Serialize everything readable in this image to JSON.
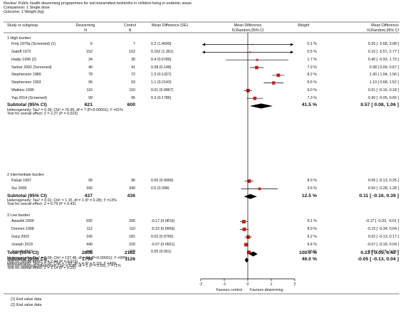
{
  "header": {
    "review": "Review:  Public health deworming programmes for soil-transmitted helminths in children living in endemic areas",
    "comparison": "Comparison:  1 Single dose",
    "outcome": "Outcome:  1 Weight (kg)"
  },
  "columns": {
    "study": "Study or subgroup",
    "deworming": "Deworming",
    "deworming_n": "N",
    "control": "Control",
    "control_n": "N",
    "md_se": "Mean Difference (SE)",
    "md_top": "Mean Difference",
    "md_method": "IV,Random,95% CI",
    "weight": "Weight",
    "md2_top": "Mean Difference",
    "md2_method": "IV,Random,95% CI"
  },
  "chart_data": {
    "type": "forest",
    "xlim": [
      -2,
      2
    ],
    "xticks": [
      "-2",
      "-1",
      "0",
      "1",
      "2"
    ],
    "xlabel_left": "Favours control",
    "xlabel_right": "Favours deworming",
    "groups": [
      {
        "title": "1 High burden",
        "studies": [
          {
            "name": "Freij 1979a (Screened) (1)",
            "n1": "6",
            "n2": "7",
            "md_se": "0.2 (1.4699)",
            "md": 0.2,
            "lo": -2.68,
            "hi": 3.08,
            "weight": "0.1 %",
            "w": 0.1,
            "ci": "0.20 [ -2.68, 3.08 ]"
          },
          {
            "name": "Gateff 1972",
            "n1": "152",
            "n2": "152",
            "md_se": "0.102 (1.361)",
            "md": 0.1,
            "lo": -2.57,
            "hi": 2.77,
            "weight": "0.5 %",
            "w": 0.5,
            "ci": "0.10 [ -2.57, 2.77 ]"
          },
          {
            "name": "Hadju 1996 (2)",
            "n1": "34",
            "n2": "30",
            "md_se": "0.4 (0.6786)",
            "md": 0.4,
            "lo": -0.93,
            "hi": 1.73,
            "weight": "1.7 %",
            "w": 1.7,
            "ci": "0.40 [ -0.93, 1.73 ]"
          },
          {
            "name": "Sarkar 2002 (Screened)",
            "n1": "40",
            "n2": "41",
            "md_se": "0.38 (0.148)",
            "md": 0.38,
            "lo": 0.09,
            "hi": 0.67,
            "weight": "7.9 %",
            "w": 7.9,
            "ci": "0.38 [ 0.09, 0.67 ]"
          },
          {
            "name": "Stephenson 1989",
            "n1": "78",
            "n2": "72",
            "md_se": "1.3 (0.1327)",
            "md": 1.3,
            "lo": 1.04,
            "hi": 1.56,
            "weight": "8.2 %",
            "w": 8.2,
            "ci": "1.30 [ 1.04, 1.56 ]"
          },
          {
            "name": "Stephenson 1993",
            "n1": "96",
            "n2": "93",
            "md_se": "1.1 (0.2143)",
            "md": 1.1,
            "lo": 0.68,
            "hi": 1.52,
            "weight": "6.6 %",
            "w": 6.6,
            "ci": "1.10 [ 0.68, 1.52 ]"
          },
          {
            "name": "Watkins 1996",
            "n1": "116",
            "n2": "110",
            "md_se": "0.01 (0.0867)",
            "md": 0.01,
            "lo": -0.16,
            "hi": 0.18,
            "weight": "9.0 %",
            "w": 9.0,
            "ci": "0.01 [ -0.16, 0.18 ]"
          },
          {
            "name": "Yap 2014 (Screened)",
            "n1": "99",
            "n2": "95",
            "md_se": "0.3 (0.1786)",
            "md": 0.3,
            "lo": -0.05,
            "hi": 0.65,
            "weight": "7.3 %",
            "w": 7.3,
            "ci": "0.30 [ -0.05, 0.65 ]"
          }
        ],
        "subtotal": {
          "label": "Subtotal (95% CI)",
          "n1": "621",
          "n2": "600",
          "weight": "41.5 %",
          "ci": "0.57 [ 0.08, 1.06 ]",
          "md": 0.57,
          "lo": 0.08,
          "hi": 1.06
        },
        "heterogeneity": "Heterogeneity: Tau² = 0.34; Chi² = 76.95, df = 7 (P<0.00001); I² =91%",
        "overall": "Test for overall effect: Z = 2.27 (P = 0.023)"
      },
      {
        "title": "2 Intermediate burden",
        "studies": [
          {
            "name": "Palupi 1997",
            "n1": "95",
            "n2": "96",
            "md_se": "0.06 (0.0969)",
            "md": 0.06,
            "lo": -0.13,
            "hi": 0.25,
            "weight": "8.9 %",
            "w": 8.9,
            "ci": "0.06 [ -0.13, 0.25 ]"
          },
          {
            "name": "Sur 2005",
            "n1": "342",
            "n2": "340",
            "md_se": "0.5 (0.398)",
            "md": 0.5,
            "lo": -0.28,
            "hi": 1.28,
            "weight": "3.6 %",
            "w": 3.6,
            "ci": "0.50 [ -0.28, 1.28 ]"
          }
        ],
        "subtotal": {
          "label": "Subtotal (95% CI)",
          "n1": "437",
          "n2": "436",
          "weight": "12.5 %",
          "ci": "0.11 [ -0.16, 0.39 ]",
          "md": 0.11,
          "lo": -0.16,
          "hi": 0.39
        },
        "heterogeneity": "Heterogeneity: Tau² = 0.01; Chi² = 1.15, df = 1 (P = 0.28); I² =13%",
        "overall": "Test for overall effect: Z = 0.79 (P = 0.43)"
      },
      {
        "title": "3 Low burden",
        "studies": [
          {
            "name": "Awasthi 2000",
            "n1": "592",
            "n2": "395",
            "md_se": "-0.17 (0.0816)",
            "md": -0.17,
            "lo": -0.33,
            "hi": -0.01,
            "weight": "9.1 %",
            "w": 9.1,
            "ci": "-0.17 [ -0.33, -0.01 ]"
          },
          {
            "name": "Donnen 1998",
            "n1": "112",
            "n2": "110",
            "md_se": "-0.15 (0.0969)",
            "md": -0.15,
            "lo": -0.34,
            "hi": 0.04,
            "weight": "8.9 %",
            "w": 8.9,
            "ci": "-0.15 [ -0.34, 0.04 ]"
          },
          {
            "name": "Garg 2002",
            "n1": "166",
            "n2": "181",
            "md_se": "0.02 (0.0765)",
            "md": 0.02,
            "lo": -0.13,
            "hi": 0.17,
            "weight": "9.2 %",
            "w": 9.2,
            "ci": "0.02 [ -0.13, 0.17 ]"
          },
          {
            "name": "Joseph 2015",
            "n1": "440",
            "n2": "220",
            "md_se": "-0.07 (0.0561)",
            "md": -0.07,
            "lo": -0.18,
            "hi": 0.04,
            "weight": "9.4 %",
            "w": 9.4,
            "ci": "-0.07 [ -0.18, 0.04 ]"
          },
          {
            "name": "Joseph 2015",
            "n1": "440",
            "n2": "220",
            "md_se": "0.05 (0.051)",
            "md": 0.05,
            "lo": -0.05,
            "hi": 0.15,
            "weight": "9.5 %",
            "w": 9.5,
            "ci": "0.05 [ -0.05, 0.15 ]"
          }
        ],
        "subtotal": {
          "label": "Subtotal (95% CI)",
          "n1": "1750",
          "n2": "1126",
          "weight": "46.0 %",
          "ci": "-0.05 [ -0.13, 0.04 ]",
          "md": -0.05,
          "lo": -0.13,
          "hi": 0.04
        },
        "heterogeneity": "Heterogeneity: Tau² = 0.00; Chi² = 7.83, df = 4 (P = 0.10); I² =49%",
        "overall": "Test for overall effect: Z = 1.14 (P = 0.25)"
      }
    ],
    "total": {
      "label": "Total (95% CI)",
      "n1": "2808",
      "n2": "2162",
      "weight": "100.0 %",
      "ci": "0.23 [ 0.05, 0.42 ]",
      "md": 0.23,
      "lo": 0.05,
      "hi": 0.42
    },
    "total_heterogeneity": "Heterogeneity: Tau² = 0.09; Chi² = 137.48, df = 14 (P<0.00001); I² =90%",
    "total_overall": "Test for overall effect: Z = 2.44 (P = 0.015)",
    "subgroup_diff": "Test for subgroup differences: Chi² = 6.86, df = 2 (P = 0.03), I² =71%"
  },
  "footnotes": [
    "(1) End value data",
    "(2) End value data"
  ],
  "colors": {
    "marker": "#c0201c",
    "line": "#000000"
  }
}
